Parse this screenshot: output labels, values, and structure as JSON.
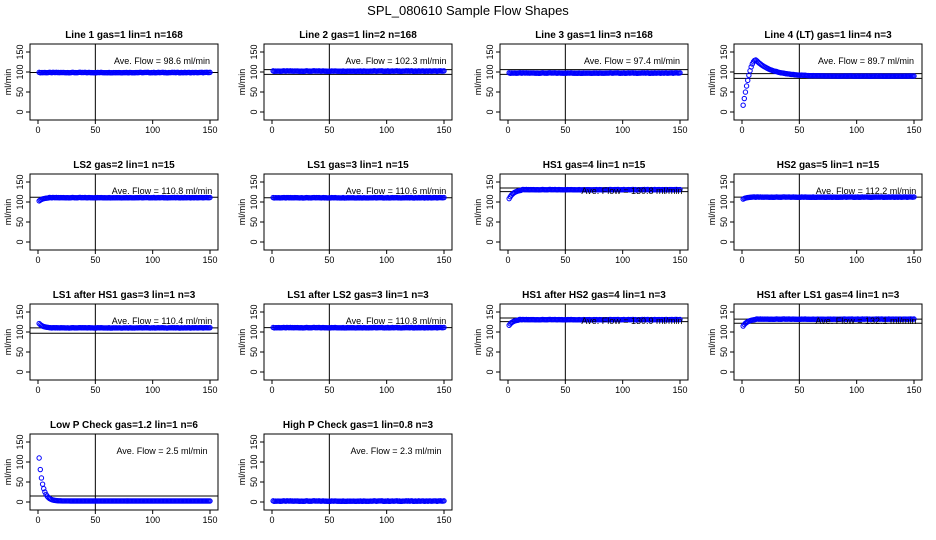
{
  "title": "SPL_080610  Sample Flow Shapes",
  "chart_data": [
    {
      "type": "scatter",
      "title": "Line 1 gas=1 lin=1 n=168",
      "ylabel": "ml/min",
      "annotation": "Ave. Flow =  98.6  ml/min",
      "ave": 98.6,
      "xlim": [
        0,
        150
      ],
      "ylim": [
        0,
        150
      ],
      "xticks": [
        0,
        50,
        100,
        150
      ],
      "yticks": [
        0,
        50,
        100,
        150
      ],
      "vline": 50,
      "hlines": [
        98.6
      ],
      "shape": "flat",
      "start": 98,
      "settle": 5,
      "peak_x": null
    },
    {
      "type": "scatter",
      "title": "Line 2 gas=1 lin=2 n=168",
      "ylabel": "ml/min",
      "annotation": "Ave. Flow =  102.3  ml/min",
      "ave": 102.3,
      "xlim": [
        0,
        150
      ],
      "ylim": [
        0,
        150
      ],
      "xticks": [
        0,
        50,
        100,
        150
      ],
      "yticks": [
        0,
        50,
        100,
        150
      ],
      "vline": 50,
      "hlines": [
        106,
        94
      ],
      "shape": "flat",
      "start": 100,
      "settle": 5,
      "peak_x": null
    },
    {
      "type": "scatter",
      "title": "Line 3 gas=1 lin=3 n=168",
      "ylabel": "ml/min",
      "annotation": "Ave. Flow =  97.4  ml/min",
      "ave": 97.4,
      "xlim": [
        0,
        150
      ],
      "ylim": [
        0,
        150
      ],
      "xticks": [
        0,
        50,
        100,
        150
      ],
      "yticks": [
        0,
        50,
        100,
        150
      ],
      "vline": 50,
      "hlines": [
        106,
        94
      ],
      "shape": "flat",
      "start": 100,
      "settle": 5,
      "peak_x": null
    },
    {
      "type": "scatter",
      "title": "Line 4 (LT) gas=1 lin=4 n=3",
      "ylabel": "ml/min",
      "annotation": "Ave. Flow =  89.7  ml/min",
      "ave": 89.7,
      "xlim": [
        0,
        150
      ],
      "ylim": [
        0,
        150
      ],
      "xticks": [
        0,
        50,
        100,
        150
      ],
      "yticks": [
        0,
        50,
        100,
        150
      ],
      "vline": 50,
      "hlines": [
        96,
        84
      ],
      "shape": "peak",
      "start": 0,
      "settle": 60,
      "peak_x": 12,
      "peak_y": 130
    },
    {
      "type": "scatter",
      "title": "LS2 gas=2 lin=1 n=15",
      "ylabel": "ml/min",
      "annotation": "Ave. Flow =  110.8  ml/min",
      "ave": 110.8,
      "xlim": [
        0,
        150
      ],
      "ylim": [
        0,
        150
      ],
      "xticks": [
        0,
        50,
        100,
        150
      ],
      "yticks": [
        0,
        50,
        100,
        150
      ],
      "vline": 50,
      "hlines": [
        112
      ],
      "shape": "rise",
      "start": 100,
      "settle": 10,
      "peak_x": null
    },
    {
      "type": "scatter",
      "title": "LS1 gas=3 lin=1 n=15",
      "ylabel": "ml/min",
      "annotation": "Ave. Flow =  110.6  ml/min",
      "ave": 110.6,
      "xlim": [
        0,
        150
      ],
      "ylim": [
        0,
        150
      ],
      "xticks": [
        0,
        50,
        100,
        150
      ],
      "yticks": [
        0,
        50,
        100,
        150
      ],
      "vline": 50,
      "hlines": [
        110.6
      ],
      "shape": "flat",
      "start": 109,
      "settle": 5,
      "peak_x": null
    },
    {
      "type": "scatter",
      "title": "HS1 gas=4 lin=1 n=15",
      "ylabel": "ml/min",
      "annotation": "Ave. Flow =  130.8  ml/min",
      "ave": 130.8,
      "xlim": [
        0,
        150
      ],
      "ylim": [
        0,
        150
      ],
      "xticks": [
        0,
        50,
        100,
        150
      ],
      "yticks": [
        0,
        50,
        100,
        150
      ],
      "vline": 50,
      "hlines": [
        135,
        126
      ],
      "shape": "rise",
      "start": 102,
      "settle": 12,
      "peak_x": null
    },
    {
      "type": "scatter",
      "title": "HS2 gas=5 lin=1 n=15",
      "ylabel": "ml/min",
      "annotation": "Ave. Flow =  112.2  ml/min",
      "ave": 112.2,
      "xlim": [
        0,
        150
      ],
      "ylim": [
        0,
        150
      ],
      "xticks": [
        0,
        50,
        100,
        150
      ],
      "yticks": [
        0,
        50,
        100,
        150
      ],
      "vline": 50,
      "hlines": [
        112.2
      ],
      "shape": "rise",
      "start": 105,
      "settle": 8,
      "peak_x": null
    },
    {
      "type": "scatter",
      "title": "LS1 after HS1 gas=3 lin=1 n=3",
      "ylabel": "ml/min",
      "annotation": "Ave. Flow =  110.4  ml/min",
      "ave": 110.4,
      "xlim": [
        0,
        150
      ],
      "ylim": [
        0,
        150
      ],
      "xticks": [
        0,
        50,
        100,
        150
      ],
      "yticks": [
        0,
        50,
        100,
        150
      ],
      "vline": 50,
      "hlines": [
        110.4,
        97
      ],
      "shape": "fall",
      "start": 125,
      "settle": 10,
      "peak_x": null
    },
    {
      "type": "scatter",
      "title": "LS1 after LS2 gas=3 lin=1 n=3",
      "ylabel": "ml/min",
      "annotation": "Ave. Flow =  110.8  ml/min",
      "ave": 110.8,
      "xlim": [
        0,
        150
      ],
      "ylim": [
        0,
        150
      ],
      "xticks": [
        0,
        50,
        100,
        150
      ],
      "yticks": [
        0,
        50,
        100,
        150
      ],
      "vline": 50,
      "hlines": [
        110.8
      ],
      "shape": "flat",
      "start": 110,
      "settle": 5,
      "peak_x": null
    },
    {
      "type": "scatter",
      "title": "HS1 after HS2 gas=4 lin=1 n=3",
      "ylabel": "ml/min",
      "annotation": "Ave. Flow =  130.9  ml/min",
      "ave": 130.9,
      "xlim": [
        0,
        150
      ],
      "ylim": [
        0,
        150
      ],
      "xticks": [
        0,
        50,
        100,
        150
      ],
      "yticks": [
        0,
        50,
        100,
        150
      ],
      "vline": 50,
      "hlines": [
        135,
        126
      ],
      "shape": "rise",
      "start": 112,
      "settle": 10,
      "peak_x": null
    },
    {
      "type": "scatter",
      "title": "HS1 after LS1 gas=4 lin=1 n=3",
      "ylabel": "ml/min",
      "annotation": "Ave. Flow =  132.1  ml/min",
      "ave": 132.1,
      "xlim": [
        0,
        150
      ],
      "ylim": [
        0,
        150
      ],
      "xticks": [
        0,
        50,
        100,
        150
      ],
      "yticks": [
        0,
        50,
        100,
        150
      ],
      "vline": 50,
      "hlines": [
        132.1,
        122
      ],
      "shape": "rise",
      "start": 110,
      "settle": 12,
      "peak_x": null
    },
    {
      "type": "scatter",
      "title": "Low P Check gas=1.2 lin=1 n=6",
      "ylabel": "ml/min",
      "annotation": "Ave. Flow =  2.5  ml/min",
      "ave": 2.5,
      "xlim": [
        0,
        150
      ],
      "ylim": [
        0,
        150
      ],
      "xticks": [
        0,
        50,
        100,
        150
      ],
      "yticks": [
        0,
        50,
        100,
        150
      ],
      "vline": 50,
      "hlines": [
        15
      ],
      "shape": "decay",
      "start": 110,
      "settle": 15,
      "peak_x": null
    },
    {
      "type": "scatter",
      "title": "High P Check gas=1 lin=0.8 n=3",
      "ylabel": "ml/min",
      "annotation": "Ave. Flow =  2.3  ml/min",
      "ave": 2.3,
      "xlim": [
        0,
        150
      ],
      "ylim": [
        0,
        150
      ],
      "xticks": [
        0,
        50,
        100,
        150
      ],
      "yticks": [
        0,
        50,
        100,
        150
      ],
      "vline": 50,
      "hlines": [],
      "shape": "flat",
      "start": 2.3,
      "settle": 5,
      "peak_x": null
    }
  ]
}
